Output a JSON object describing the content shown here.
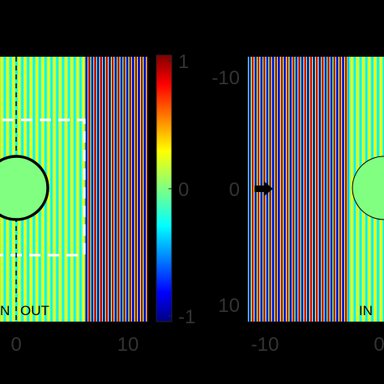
{
  "chart_data": [
    {
      "type": "heatmap",
      "title": "",
      "xlabel": "",
      "ylabel": "",
      "x_ticks": [
        0,
        10
      ],
      "x_tick_labels": [
        "0",
        "10"
      ],
      "region_labels": [
        "N",
        "OUT"
      ],
      "colorbar": {
        "colormap": "jet",
        "range": [
          -1,
          1
        ],
        "ticks": [
          1,
          0,
          -1
        ],
        "tick_labels": [
          "1",
          "0",
          "-1"
        ]
      },
      "objects": [
        "circular scatterer at x = 0",
        "dashed boundary line at x = 0",
        "dashed rectangular box"
      ]
    },
    {
      "type": "heatmap",
      "title": "",
      "xlabel": "",
      "ylabel": "",
      "x_ticks": [
        -10,
        0
      ],
      "x_tick_labels": [
        "-10",
        "0"
      ],
      "y_ticks": [
        -10,
        0,
        10
      ],
      "y_tick_labels": [
        "-10",
        "0",
        "10"
      ],
      "region_labels": [
        "IN"
      ],
      "objects": [
        "incident wave arrow pointing right",
        "circular scatterer at x = 0"
      ]
    }
  ]
}
